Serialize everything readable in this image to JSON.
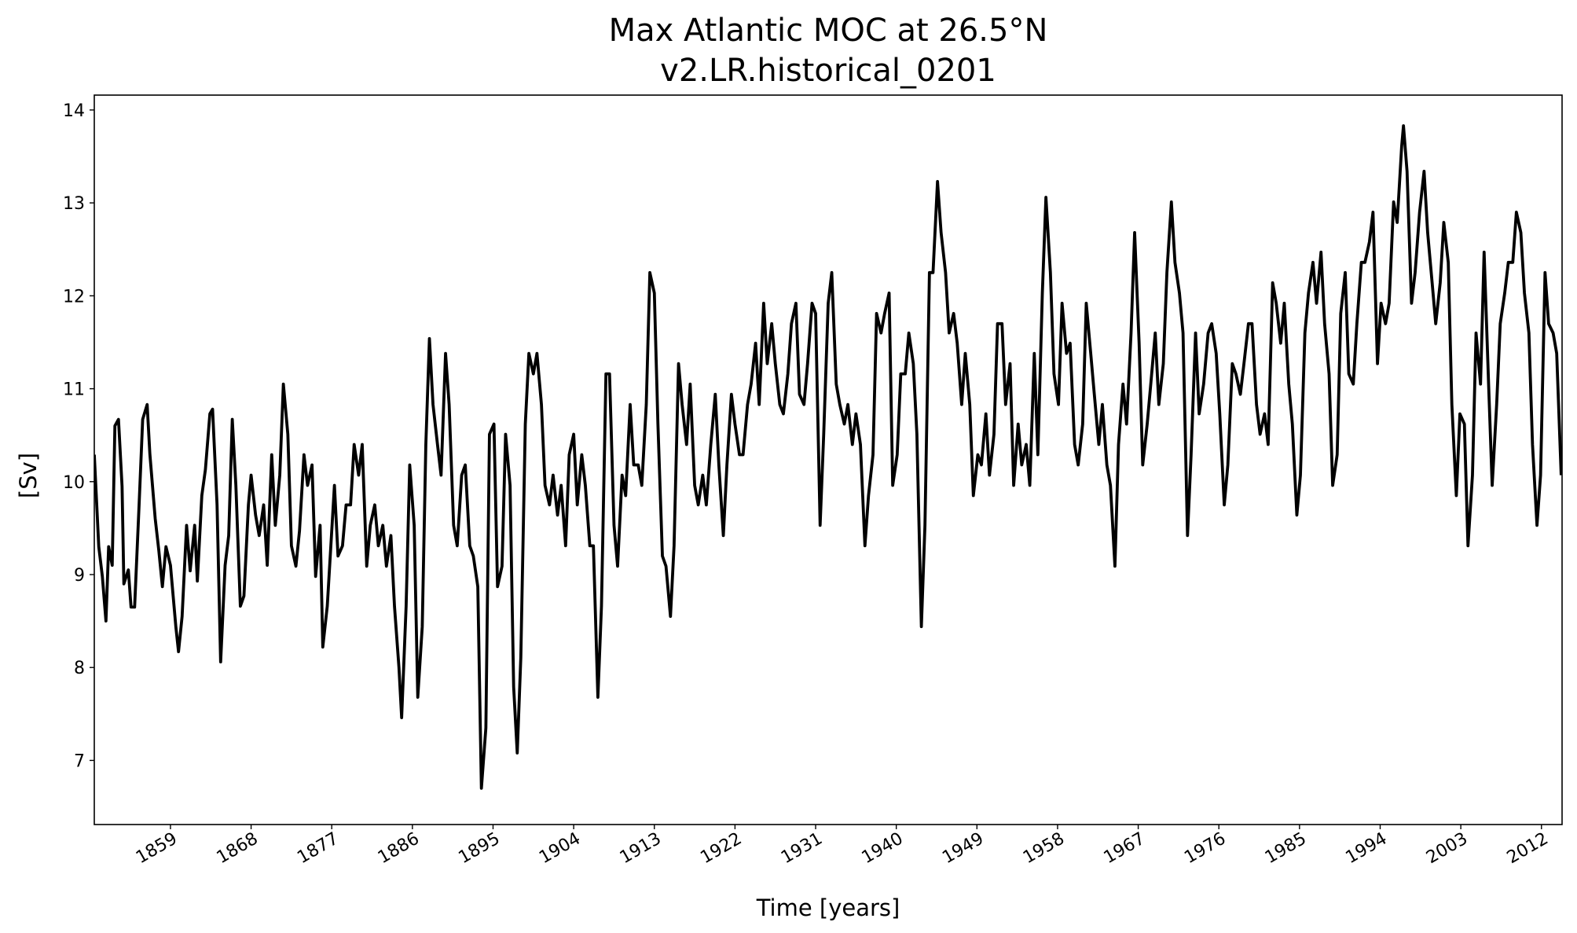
{
  "chart_data": {
    "type": "line",
    "title": "Max Atlantic MOC at 26.5°N",
    "subtitle": "v2.LR.historical_0201",
    "xlabel": "Time [years]",
    "ylabel": "[Sv]",
    "color": "#000000",
    "xlim": [
      1850.5,
      2014.3
    ],
    "ylim": [
      6.31,
      14.16
    ],
    "xticks": [
      1859,
      1868,
      1877,
      1886,
      1895,
      1904,
      1913,
      1922,
      1931,
      1940,
      1949,
      1958,
      1967,
      1976,
      1985,
      1994,
      2003,
      2012
    ],
    "yticks": [
      7,
      8,
      9,
      10,
      11,
      12,
      13,
      14
    ],
    "x": [
      1850.5,
      1851.0,
      1851.4,
      1851.8,
      1852.1,
      1852.5,
      1852.8,
      1853.2,
      1853.6,
      1853.8,
      1854.3,
      1854.6,
      1855.0,
      1855.5,
      1855.9,
      1856.4,
      1856.7,
      1857.3,
      1857.7,
      1858.1,
      1858.5,
      1859.0,
      1859.6,
      1859.9,
      1860.3,
      1860.8,
      1861.2,
      1861.7,
      1862.0,
      1862.5,
      1862.9,
      1863.4,
      1863.7,
      1864.2,
      1864.6,
      1865.1,
      1865.5,
      1865.9,
      1866.3,
      1866.8,
      1867.2,
      1867.7,
      1868.0,
      1868.5,
      1868.9,
      1869.4,
      1869.8,
      1870.3,
      1870.7,
      1871.2,
      1871.6,
      1872.1,
      1872.5,
      1873.0,
      1873.4,
      1873.9,
      1874.3,
      1874.8,
      1875.2,
      1875.7,
      1876.0,
      1876.5,
      1876.9,
      1877.3,
      1877.7,
      1878.2,
      1878.6,
      1879.1,
      1879.5,
      1880.0,
      1880.4,
      1880.9,
      1881.3,
      1881.8,
      1882.2,
      1882.7,
      1883.1,
      1883.6,
      1884.0,
      1884.5,
      1884.8,
      1885.3,
      1885.7,
      1886.2,
      1886.6,
      1887.1,
      1887.5,
      1887.9,
      1888.3,
      1888.8,
      1889.2,
      1889.7,
      1890.1,
      1890.6,
      1891.0,
      1891.5,
      1891.9,
      1892.4,
      1892.8,
      1893.3,
      1893.7,
      1894.2,
      1894.6,
      1895.1,
      1895.5,
      1896.0,
      1896.4,
      1896.9,
      1897.3,
      1897.7,
      1898.1,
      1898.6,
      1899.0,
      1899.5,
      1899.9,
      1900.4,
      1900.8,
      1901.3,
      1901.7,
      1902.2,
      1902.6,
      1903.1,
      1903.5,
      1904.0,
      1904.4,
      1904.9,
      1905.3,
      1905.8,
      1906.2,
      1906.7,
      1907.1,
      1907.6,
      1908.0,
      1908.5,
      1908.9,
      1909.4,
      1909.8,
      1910.3,
      1910.7,
      1911.2,
      1911.6,
      1912.1,
      1912.5,
      1913.0,
      1913.4,
      1913.9,
      1914.3,
      1914.8,
      1915.2,
      1915.7,
      1916.1,
      1916.6,
      1917.0,
      1917.5,
      1917.9,
      1918.4,
      1918.8,
      1919.3,
      1919.8,
      1920.2,
      1920.7,
      1921.1,
      1921.6,
      1922.0,
      1922.5,
      1922.9,
      1923.4,
      1923.8,
      1924.3,
      1924.7,
      1925.2,
      1925.6,
      1926.1,
      1926.5,
      1927.0,
      1927.4,
      1927.9,
      1928.3,
      1928.8,
      1929.2,
      1929.7,
      1930.1,
      1930.6,
      1931.0,
      1931.5,
      1931.9,
      1932.4,
      1932.8,
      1933.3,
      1933.7,
      1934.2,
      1934.6,
      1935.1,
      1935.5,
      1936.0,
      1936.5,
      1936.9,
      1937.4,
      1937.8,
      1938.3,
      1938.7,
      1939.2,
      1939.6,
      1940.1,
      1940.5,
      1941.0,
      1941.4,
      1941.9,
      1942.3,
      1942.8,
      1943.2,
      1943.7,
      1944.1,
      1944.6,
      1945.0,
      1945.5,
      1945.9,
      1946.4,
      1946.8,
      1947.3,
      1947.7,
      1948.2,
      1948.6,
      1949.1,
      1949.5,
      1950.0,
      1950.4,
      1950.9,
      1951.3,
      1951.8,
      1952.2,
      1952.7,
      1953.1,
      1953.6,
      1954.0,
      1954.5,
      1954.9,
      1955.4,
      1955.8,
      1956.3,
      1956.7,
      1957.2,
      1957.6,
      1958.1,
      1958.5,
      1959.0,
      1959.4,
      1959.9,
      1960.3,
      1960.8,
      1961.2,
      1961.7,
      1962.1,
      1962.6,
      1963.0,
      1963.5,
      1963.9,
      1964.4,
      1964.8,
      1965.3,
      1965.7,
      1966.2,
      1966.6,
      1967.1,
      1967.5,
      1968.0,
      1968.4,
      1968.9,
      1969.3,
      1969.8,
      1970.2,
      1970.7,
      1971.1,
      1971.6,
      1972.0,
      1972.5,
      1972.9,
      1973.4,
      1973.8,
      1974.3,
      1974.8,
      1975.2,
      1975.7,
      1976.1,
      1976.6,
      1977.0,
      1977.5,
      1977.9,
      1978.4,
      1978.8,
      1979.3,
      1979.7,
      1980.2,
      1980.6,
      1981.1,
      1981.5,
      1982.0,
      1982.4,
      1982.9,
      1983.3,
      1983.8,
      1984.2,
      1984.7,
      1985.1,
      1985.6,
      1986.0,
      1986.5,
      1986.9,
      1987.4,
      1987.8,
      1988.3,
      1988.7,
      1989.2,
      1989.6,
      1990.1,
      1990.5,
      1991.0,
      1991.4,
      1991.9,
      1992.3,
      1992.8,
      1993.2,
      1993.7,
      1994.1,
      1994.6,
      1995.0,
      1995.5,
      1995.9,
      1996.4,
      1996.6,
      1997.0,
      1997.5,
      1997.9,
      1998.4,
      1998.9,
      1999.3,
      1999.8,
      2000.2,
      2000.7,
      2001.1,
      2001.6,
      2002.0,
      2002.5,
      2002.9,
      2003.4,
      2003.8,
      2004.3,
      2004.7,
      2005.2,
      2005.6,
      2006.1,
      2006.5,
      2007.0,
      2007.4,
      2007.9,
      2008.3,
      2008.8,
      2009.2,
      2009.7,
      2010.1,
      2010.6,
      2011.0,
      2011.5,
      2011.9,
      2012.4,
      2012.8,
      2013.3,
      2013.7,
      2014.2
    ],
    "values": [
      10.29,
      9.3,
      8.98,
      8.5,
      9.3,
      9.1,
      10.6,
      10.67,
      9.95,
      8.9,
      9.05,
      8.65,
      8.65,
      9.75,
      10.67,
      10.83,
      10.3,
      9.6,
      9.26,
      8.87,
      9.3,
      9.1,
      8.44,
      8.17,
      8.55,
      9.53,
      9.04,
      9.53,
      8.93,
      9.85,
      10.13,
      10.73,
      10.78,
      9.75,
      8.06,
      9.1,
      9.42,
      10.67,
      9.96,
      8.66,
      8.77,
      9.75,
      10.07,
      9.64,
      9.42,
      9.75,
      9.1,
      10.29,
      9.53,
      10.07,
      11.05,
      10.51,
      9.31,
      9.09,
      9.47,
      10.29,
      9.96,
      10.18,
      8.98,
      9.53,
      8.22,
      8.66,
      9.31,
      9.96,
      9.2,
      9.31,
      9.75,
      9.75,
      10.4,
      10.07,
      10.4,
      9.09,
      9.53,
      9.75,
      9.31,
      9.53,
      9.09,
      9.42,
      8.66,
      8.0,
      7.46,
      8.66,
      10.18,
      9.53,
      7.68,
      8.44,
      10.4,
      11.54,
      10.83,
      10.4,
      10.07,
      11.38,
      10.83,
      9.53,
      9.31,
      10.07,
      10.18,
      9.31,
      9.2,
      8.87,
      6.7,
      7.35,
      10.51,
      10.62,
      8.87,
      9.09,
      10.51,
      9.96,
      7.79,
      7.08,
      8.11,
      10.62,
      11.38,
      11.16,
      11.38,
      10.83,
      9.96,
      9.75,
      10.07,
      9.64,
      9.96,
      9.31,
      10.29,
      10.51,
      9.75,
      10.29,
      9.96,
      9.31,
      9.31,
      7.68,
      8.66,
      11.16,
      11.16,
      9.53,
      9.09,
      10.07,
      9.85,
      10.83,
      10.18,
      10.18,
      9.96,
      10.83,
      12.25,
      12.03,
      10.62,
      9.2,
      9.09,
      8.55,
      9.31,
      11.27,
      10.83,
      10.4,
      11.05,
      9.96,
      9.75,
      10.07,
      9.75,
      10.4,
      10.94,
      10.18,
      9.42,
      10.18,
      10.94,
      10.62,
      10.29,
      10.29,
      10.83,
      11.05,
      11.49,
      10.83,
      11.92,
      11.27,
      11.7,
      11.27,
      10.83,
      10.73,
      11.16,
      11.7,
      11.92,
      10.94,
      10.83,
      11.27,
      11.92,
      11.81,
      9.53,
      10.51,
      11.92,
      12.25,
      11.05,
      10.83,
      10.62,
      10.83,
      10.4,
      10.73,
      10.4,
      9.31,
      9.85,
      10.29,
      11.81,
      11.6,
      11.81,
      12.03,
      9.96,
      10.29,
      11.16,
      11.16,
      11.6,
      11.27,
      10.51,
      8.44,
      9.53,
      12.25,
      12.25,
      13.23,
      12.68,
      12.25,
      11.6,
      11.81,
      11.49,
      10.83,
      11.38,
      10.83,
      9.85,
      10.29,
      10.18,
      10.73,
      10.07,
      10.51,
      11.7,
      11.7,
      10.83,
      11.27,
      9.96,
      10.62,
      10.18,
      10.4,
      9.96,
      11.38,
      10.29,
      12.03,
      13.06,
      12.25,
      11.16,
      10.83,
      11.92,
      11.38,
      11.49,
      10.4,
      10.18,
      10.62,
      11.92,
      11.38,
      10.94,
      10.4,
      10.83,
      10.18,
      9.96,
      9.09,
      10.4,
      11.05,
      10.62,
      11.6,
      12.68,
      11.49,
      10.18,
      10.62,
      11.05,
      11.6,
      10.83,
      11.27,
      12.25,
      13.01,
      12.36,
      12.03,
      11.6,
      9.42,
      10.29,
      11.6,
      10.73,
      11.05,
      11.6,
      11.7,
      11.38,
      10.73,
      9.75,
      10.18,
      11.27,
      11.16,
      10.94,
      11.27,
      11.7,
      11.7,
      10.83,
      10.51,
      10.73,
      10.4,
      12.14,
      11.92,
      11.49,
      11.92,
      11.05,
      10.62,
      9.64,
      10.07,
      11.6,
      12.03,
      12.36,
      11.92,
      12.47,
      11.7,
      11.16,
      9.96,
      10.29,
      11.81,
      12.25,
      11.16,
      11.05,
      11.7,
      12.36,
      12.36,
      12.58,
      12.9,
      11.27,
      11.92,
      11.7,
      11.92,
      13.01,
      12.79,
      13.61,
      13.83,
      13.34,
      11.92,
      12.25,
      12.9,
      13.34,
      12.68,
      12.14,
      11.7,
      12.14,
      12.79,
      12.36,
      10.83,
      9.85,
      10.73,
      10.62,
      9.31,
      10.07,
      11.6,
      11.05,
      12.47,
      11.05,
      9.96,
      10.83,
      11.7,
      12.03,
      12.36,
      12.36,
      12.9,
      12.68,
      12.03,
      11.6,
      10.4,
      9.53,
      10.07,
      12.25,
      11.7,
      11.6,
      11.38,
      10.07
    ]
  }
}
